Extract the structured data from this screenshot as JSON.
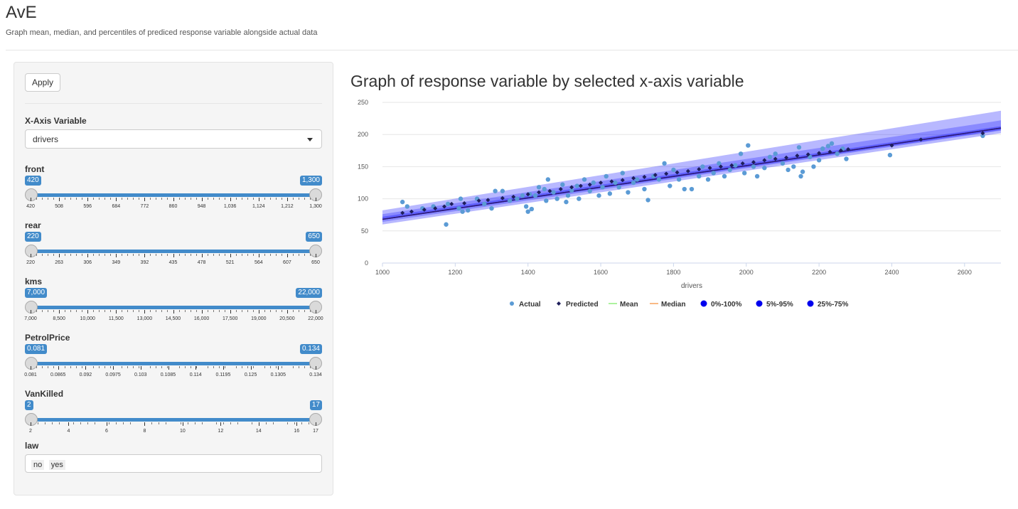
{
  "header": {
    "title": "AvE",
    "subtitle": "Graph mean, median, and percentiles of prediced response variable alongside actual data"
  },
  "sidebar": {
    "apply_label": "Apply",
    "xaxis": {
      "label": "X-Axis Variable",
      "value": "drivers"
    },
    "sliders": [
      {
        "label": "front",
        "min_label": "420",
        "max_label": "1,300",
        "ticks": [
          "420",
          "508",
          "596",
          "684",
          "772",
          "860",
          "948",
          "1,036",
          "1,124",
          "1,212",
          "1,300"
        ]
      },
      {
        "label": "rear",
        "min_label": "220",
        "max_label": "650",
        "ticks": [
          "220",
          "263",
          "306",
          "349",
          "392",
          "435",
          "478",
          "521",
          "564",
          "607",
          "650"
        ]
      },
      {
        "label": "kms",
        "min_label": "7,000",
        "max_label": "22,000",
        "ticks": [
          "7,000",
          "8,500",
          "10,000",
          "11,500",
          "13,000",
          "14,500",
          "16,000",
          "17,500",
          "19,000",
          "20,500",
          "22,000"
        ]
      },
      {
        "label": "PetrolPrice",
        "min_label": "0.081",
        "max_label": "0.134",
        "ticks": [
          "0.081",
          "0.0865",
          "0.092",
          "0.0975",
          "0.103",
          "0.1085",
          "0.114",
          "0.1195",
          "0.125",
          "0.1305",
          "0.134"
        ]
      },
      {
        "label": "VanKilled",
        "min_label": "2",
        "max_label": "17",
        "ticks": [
          "2",
          "4",
          "6",
          "8",
          "10",
          "12",
          "14",
          "16",
          "17"
        ]
      }
    ],
    "law": {
      "label": "law",
      "values": [
        "no",
        "yes"
      ]
    }
  },
  "chart": {
    "title": "Graph of response variable by selected x-axis variable"
  },
  "colors": {
    "accent": "#428bca",
    "actual": "#5b9bd5",
    "predicted": "#1f1f5c",
    "mean": "#90ed7d",
    "median": "#f7a35c",
    "band": "#0000ff"
  },
  "chart_data": {
    "type": "scatter",
    "xlabel": "drivers",
    "ylabel": "",
    "xlim": [
      1000,
      2700
    ],
    "ylim": [
      0,
      250
    ],
    "x_ticks": [
      1000,
      1200,
      1400,
      1600,
      1800,
      2000,
      2200,
      2400,
      2600
    ],
    "y_ticks": [
      0,
      50,
      100,
      150,
      200,
      250
    ],
    "grid": true,
    "legend_position": "bottom",
    "legend": [
      "Actual",
      "Predicted",
      "Mean",
      "Median",
      "0%-100%",
      "5%-95%",
      "25%-75%"
    ],
    "bands": [
      {
        "name": "0%-100%",
        "x": [
          1000,
          2700
        ],
        "low": [
          60,
          202
        ],
        "high": [
          82,
          237
        ]
      },
      {
        "name": "5%-95%",
        "x": [
          1000,
          2700
        ],
        "low": [
          64,
          206
        ],
        "high": [
          76,
          222
        ]
      },
      {
        "name": "25%-75%",
        "x": [
          1000,
          2700
        ],
        "low": [
          67,
          207
        ],
        "high": [
          72,
          213
        ]
      }
    ],
    "mean": {
      "x": [
        1000,
        2700
      ],
      "y": [
        68,
        210
      ]
    },
    "median": {
      "x": [
        1000,
        2700
      ],
      "y": [
        68,
        210
      ]
    },
    "actual": [
      [
        1055,
        95
      ],
      [
        1068,
        88
      ],
      [
        1110,
        85
      ],
      [
        1140,
        88
      ],
      [
        1175,
        60
      ],
      [
        1180,
        92
      ],
      [
        1210,
        85
      ],
      [
        1215,
        100
      ],
      [
        1220,
        80
      ],
      [
        1235,
        82
      ],
      [
        1260,
        100
      ],
      [
        1280,
        92
      ],
      [
        1300,
        85
      ],
      [
        1310,
        112
      ],
      [
        1330,
        112
      ],
      [
        1350,
        97
      ],
      [
        1370,
        100
      ],
      [
        1385,
        105
      ],
      [
        1395,
        88
      ],
      [
        1400,
        80
      ],
      [
        1405,
        107
      ],
      [
        1410,
        84
      ],
      [
        1420,
        105
      ],
      [
        1430,
        118
      ],
      [
        1445,
        115
      ],
      [
        1450,
        97
      ],
      [
        1455,
        130
      ],
      [
        1470,
        110
      ],
      [
        1480,
        100
      ],
      [
        1495,
        122
      ],
      [
        1505,
        95
      ],
      [
        1510,
        105
      ],
      [
        1520,
        113
      ],
      [
        1535,
        120
      ],
      [
        1540,
        100
      ],
      [
        1555,
        130
      ],
      [
        1570,
        112
      ],
      [
        1580,
        125
      ],
      [
        1595,
        105
      ],
      [
        1605,
        118
      ],
      [
        1615,
        135
      ],
      [
        1625,
        108
      ],
      [
        1640,
        125
      ],
      [
        1650,
        118
      ],
      [
        1660,
        140
      ],
      [
        1675,
        110
      ],
      [
        1690,
        125
      ],
      [
        1700,
        130
      ],
      [
        1720,
        115
      ],
      [
        1730,
        98
      ],
      [
        1745,
        135
      ],
      [
        1760,
        130
      ],
      [
        1775,
        155
      ],
      [
        1790,
        120
      ],
      [
        1800,
        145
      ],
      [
        1815,
        130
      ],
      [
        1830,
        115
      ],
      [
        1850,
        115
      ],
      [
        1870,
        135
      ],
      [
        1880,
        150
      ],
      [
        1895,
        130
      ],
      [
        1910,
        140
      ],
      [
        1925,
        155
      ],
      [
        1940,
        135
      ],
      [
        1955,
        145
      ],
      [
        1970,
        152
      ],
      [
        1985,
        170
      ],
      [
        1995,
        140
      ],
      [
        2005,
        183
      ],
      [
        2020,
        150
      ],
      [
        2030,
        135
      ],
      [
        2050,
        148
      ],
      [
        2065,
        165
      ],
      [
        2080,
        170
      ],
      [
        2100,
        155
      ],
      [
        2115,
        145
      ],
      [
        2130,
        150
      ],
      [
        2145,
        180
      ],
      [
        2150,
        135
      ],
      [
        2155,
        142
      ],
      [
        2175,
        165
      ],
      [
        2185,
        150
      ],
      [
        2200,
        160
      ],
      [
        2210,
        178
      ],
      [
        2225,
        182
      ],
      [
        2235,
        186
      ],
      [
        2250,
        170
      ],
      [
        2265,
        178
      ],
      [
        2275,
        162
      ],
      [
        2395,
        168
      ],
      [
        2650,
        198
      ]
    ],
    "predicted": [
      [
        1055,
        78
      ],
      [
        1080,
        80
      ],
      [
        1115,
        83
      ],
      [
        1145,
        85
      ],
      [
        1170,
        88
      ],
      [
        1190,
        92
      ],
      [
        1225,
        93
      ],
      [
        1265,
        97
      ],
      [
        1290,
        98
      ],
      [
        1330,
        101
      ],
      [
        1360,
        103
      ],
      [
        1400,
        107
      ],
      [
        1430,
        110
      ],
      [
        1460,
        112
      ],
      [
        1490,
        115
      ],
      [
        1520,
        118
      ],
      [
        1545,
        120
      ],
      [
        1570,
        122
      ],
      [
        1600,
        125
      ],
      [
        1630,
        127
      ],
      [
        1660,
        129
      ],
      [
        1690,
        132
      ],
      [
        1720,
        134
      ],
      [
        1750,
        137
      ],
      [
        1780,
        139
      ],
      [
        1810,
        141
      ],
      [
        1840,
        143
      ],
      [
        1870,
        146
      ],
      [
        1900,
        148
      ],
      [
        1930,
        150
      ],
      [
        1960,
        152
      ],
      [
        1990,
        155
      ],
      [
        2020,
        157
      ],
      [
        2050,
        160
      ],
      [
        2080,
        162
      ],
      [
        2110,
        164
      ],
      [
        2140,
        167
      ],
      [
        2170,
        169
      ],
      [
        2200,
        171
      ],
      [
        2230,
        173
      ],
      [
        2260,
        175
      ],
      [
        2280,
        177
      ],
      [
        2400,
        183
      ],
      [
        2480,
        192
      ],
      [
        2650,
        202
      ]
    ]
  }
}
